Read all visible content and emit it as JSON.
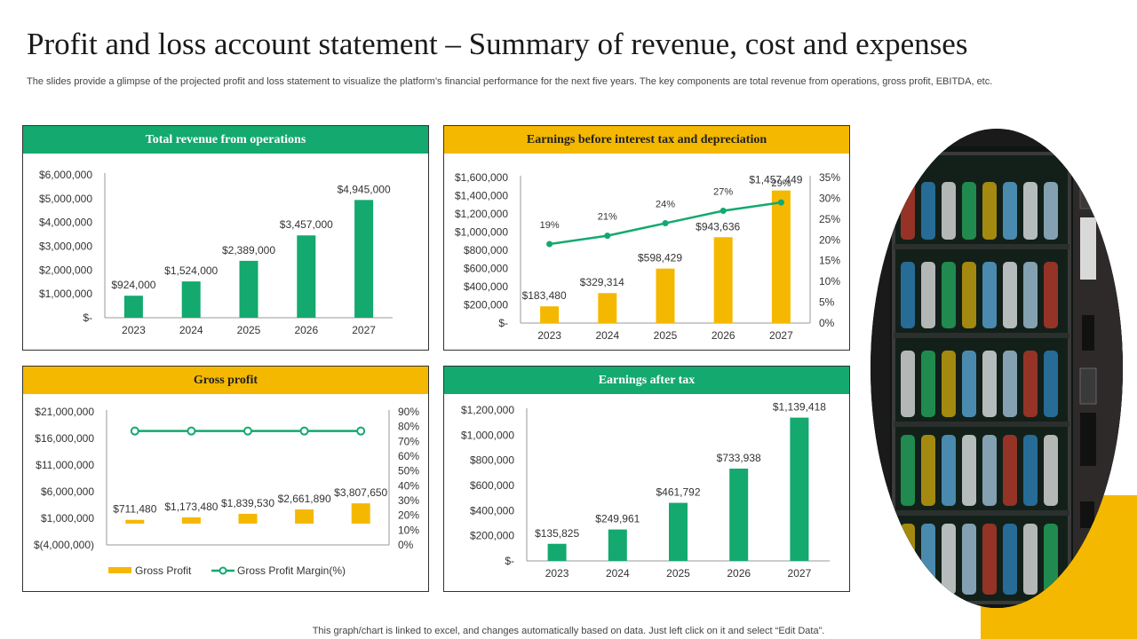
{
  "page": {
    "title": "Profit and loss account statement – Summary of revenue, cost and expenses",
    "subtitle": "The slides provide a glimpse of the projected profit and loss statement to visualize the platform’s financial performance for the next five years. The key components are total revenue from operations, gross profit, EBITDA,  etc.",
    "footer": "This graph/chart is linked to excel,  and changes automatically based on data. Just left click on it and select “Edit Data”."
  },
  "colors": {
    "green": "#13a96f",
    "yellow": "#f5b800"
  },
  "image": {
    "description_icon": "vending-machine-photo"
  },
  "chart_data": [
    {
      "id": "revenue",
      "type": "bar",
      "title": "Total revenue from operations",
      "categories": [
        "2023",
        "2024",
        "2025",
        "2026",
        "2027"
      ],
      "values": [
        924000,
        1524000,
        2389000,
        3457000,
        4945000
      ],
      "labels": [
        "$924,000",
        "$1,524,000",
        "$2,389,000",
        "$3,457,000",
        "$4,945,000"
      ],
      "ylim": [
        0,
        6000000
      ],
      "yticks": [
        0,
        1000000,
        2000000,
        3000000,
        4000000,
        5000000,
        6000000
      ],
      "ytick_labels": [
        "$-",
        "$1,000,000",
        "$2,000,000",
        "$3,000,000",
        "$4,000,000",
        "$5,000,000",
        "$6,000,000"
      ],
      "bar_color": "#13a96f"
    },
    {
      "id": "ebitda",
      "type": "bar+line",
      "title": "Earnings  before interest tax and depreciation",
      "categories": [
        "2023",
        "2024",
        "2025",
        "2026",
        "2027"
      ],
      "values": [
        183480,
        329314,
        598429,
        943636,
        1457449
      ],
      "labels": [
        "$183,480",
        "$329,314",
        "$598,429",
        "$943,636",
        "$1,457,449"
      ],
      "line_values": [
        19,
        21,
        24,
        27,
        29
      ],
      "line_labels": [
        "19%",
        "21%",
        "24%",
        "27%",
        "29%"
      ],
      "ylim": [
        0,
        1600000
      ],
      "yticks": [
        0,
        200000,
        400000,
        600000,
        800000,
        1000000,
        1200000,
        1400000,
        1600000
      ],
      "ytick_labels": [
        "$-",
        "$200,000",
        "$400,000",
        "$600,000",
        "$800,000",
        "$1,000,000",
        "$1,200,000",
        "$1,400,000",
        "$1,600,000"
      ],
      "y2lim": [
        0,
        35
      ],
      "y2ticks": [
        0,
        5,
        10,
        15,
        20,
        25,
        30,
        35
      ],
      "y2tick_labels": [
        "0%",
        "5%",
        "10%",
        "15%",
        "20%",
        "25%",
        "30%",
        "35%"
      ],
      "bar_color": "#f5b800",
      "line_color": "#13a96f"
    },
    {
      "id": "gross",
      "type": "bar+line",
      "title": "Gross profit",
      "categories": [
        "2023",
        "2024",
        "2025",
        "2026",
        "2027"
      ],
      "values": [
        711480,
        1173480,
        1839530,
        2661890,
        3807650
      ],
      "labels": [
        "$711,480",
        "$1,173,480",
        "$1,839,530",
        "$2,661,890",
        "$3,807,650"
      ],
      "line_values": [
        77,
        77,
        77,
        77,
        77
      ],
      "ylim": [
        -4000000,
        21000000
      ],
      "yticks": [
        -4000000,
        1000000,
        6000000,
        11000000,
        16000000,
        21000000
      ],
      "ytick_labels": [
        "$(4,000,000)",
        "$1,000,000",
        "$6,000,000",
        "$11,000,000",
        "$16,000,000",
        "$21,000,000"
      ],
      "y2lim": [
        0,
        90
      ],
      "y2ticks": [
        0,
        10,
        20,
        30,
        40,
        50,
        60,
        70,
        80,
        90
      ],
      "y2tick_labels": [
        "0%",
        "10%",
        "20%",
        "30%",
        "40%",
        "50%",
        "60%",
        "70%",
        "80%",
        "90%"
      ],
      "legend": [
        "Gross Profit",
        "Gross Profit Margin(%)"
      ],
      "bar_color": "#f5b800",
      "line_color": "#13a96f"
    },
    {
      "id": "eat",
      "type": "bar",
      "title": "Earnings  after tax",
      "categories": [
        "2023",
        "2024",
        "2025",
        "2026",
        "2027"
      ],
      "values": [
        135825,
        249961,
        461792,
        733938,
        1139418
      ],
      "labels": [
        "$135,825",
        "$249,961",
        "$461,792",
        "$733,938",
        "$1,139,418"
      ],
      "ylim": [
        0,
        1200000
      ],
      "yticks": [
        0,
        200000,
        400000,
        600000,
        800000,
        1000000,
        1200000
      ],
      "ytick_labels": [
        "$-",
        "$200,000",
        "$400,000",
        "$600,000",
        "$800,000",
        "$1,000,000",
        "$1,200,000"
      ],
      "bar_color": "#13a96f"
    }
  ]
}
